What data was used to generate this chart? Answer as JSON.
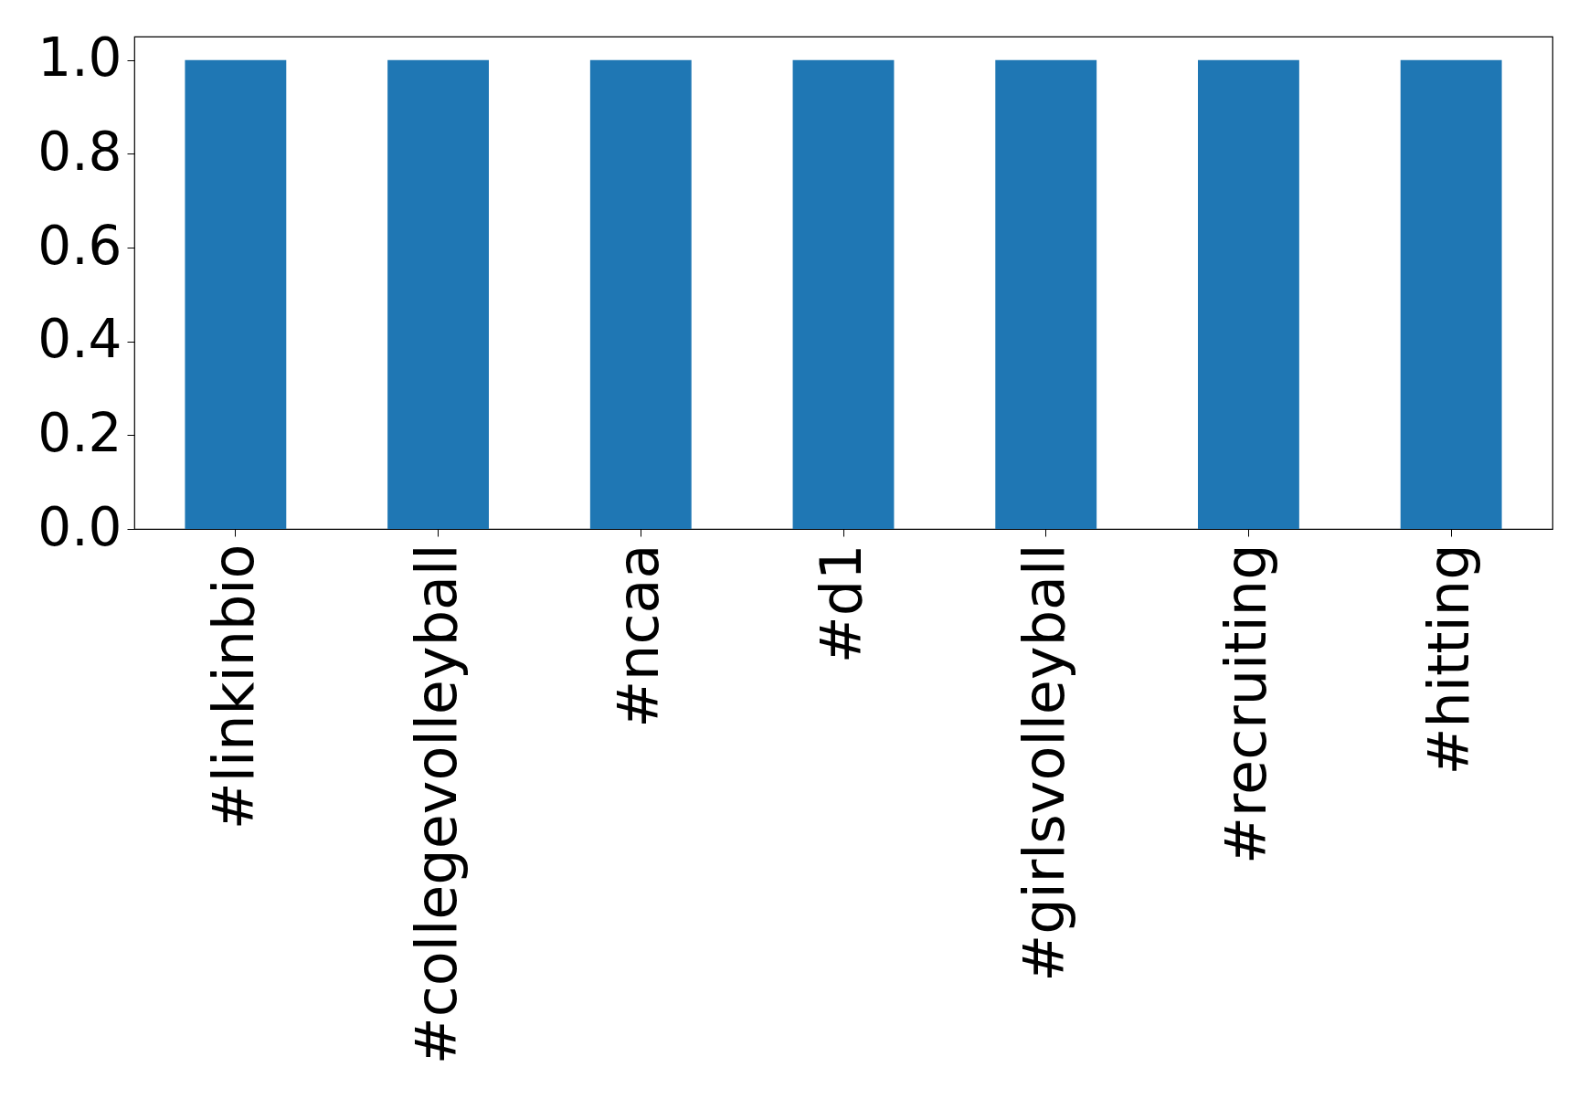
{
  "chart_data": {
    "type": "bar",
    "categories": [
      "#linkinbio",
      "#collegevolleyball",
      "#ncaa",
      "#d1",
      "#girlsvolleyball",
      "#recruiting",
      "#hitting"
    ],
    "values": [
      1,
      1,
      1,
      1,
      1,
      1,
      1
    ],
    "color": "#1f77b4",
    "ylim": [
      0,
      1.05
    ],
    "yticks": [
      {
        "value": 0,
        "label": "0.0"
      },
      {
        "value": 0.2,
        "label": "0.2"
      },
      {
        "value": 0.4,
        "label": "0.4"
      },
      {
        "value": 0.6,
        "label": "0.6"
      },
      {
        "value": 0.8,
        "label": "0.8"
      },
      {
        "value": 1,
        "label": "1.0"
      }
    ],
    "grid": false
  }
}
